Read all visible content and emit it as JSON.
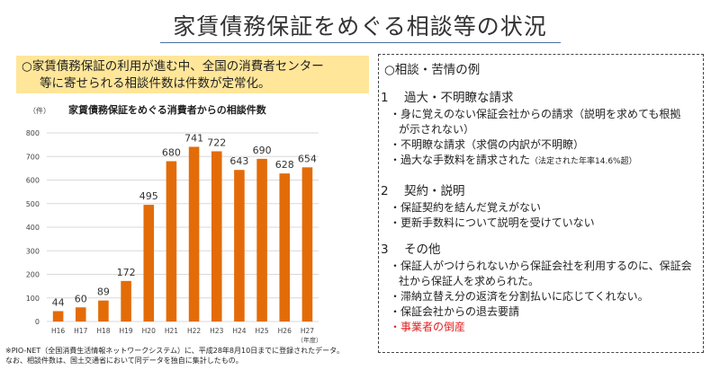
{
  "page": {
    "title": "家賃債務保証をめぐる相談等の状況"
  },
  "summary": {
    "line1": "○家賃債務保証の利用が進む中、全国の消費者センター",
    "line2": "等に寄せられる相談件数は件数が定常化。"
  },
  "chart_data": {
    "type": "bar",
    "title": "家賃債務保証をめぐる消費者からの相談件数",
    "unit_label": "（件）",
    "x_unit_label": "（年度）",
    "categories": [
      "H16",
      "H17",
      "H18",
      "H19",
      "H20",
      "H21",
      "H22",
      "H23",
      "H24",
      "H25",
      "H26",
      "H27"
    ],
    "values": [
      44,
      60,
      89,
      172,
      495,
      680,
      741,
      722,
      643,
      690,
      628,
      654
    ],
    "ylim": [
      0,
      800
    ],
    "yticks": [
      0,
      100,
      200,
      300,
      400,
      500,
      600,
      700,
      800
    ],
    "grid": true,
    "bar_color": "#e36c09",
    "grid_color": "#d9d9d9"
  },
  "footnote": {
    "line1": "※PIO-NET（全国消費生活情報ネットワークシステム）に、平成28年8月10日までに登録されたデータ。",
    "line2": "なお、相談件数は、国土交通省において同データを独自に集計したもの。"
  },
  "panel": {
    "title": "○相談・苦情の例",
    "sections": [
      {
        "num": "1",
        "heading": "過大・不明瞭な請求",
        "items": [
          "・身に覚えのない保証会社からの請求（説明を求めても根拠が示されない）",
          "・不明瞭な請求（求償の内訳が不明瞭）",
          "・過大な手数料を請求された"
        ],
        "note": "（法定された年率14.6%超）"
      },
      {
        "num": "2",
        "heading": "契約・説明",
        "items": [
          "・保証契約を結んだ覚えがない",
          "・更新手数料について説明を受けていない"
        ]
      },
      {
        "num": "3",
        "heading": "その他",
        "items": [
          "・保証人がつけられないから保証会社を利用するのに、保証会社から保証人を求められた。",
          "・滞納立替え分の返済を分割払いに応じてくれない。",
          "・保証会社からの退去要請"
        ],
        "highlight_item": "・事業者の倒産",
        "highlight_color": "#e02020"
      }
    ]
  }
}
